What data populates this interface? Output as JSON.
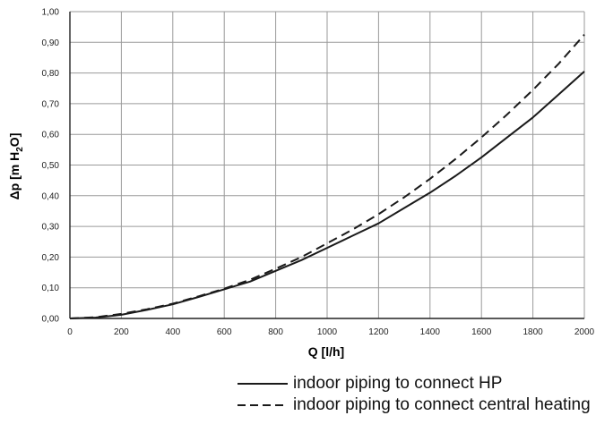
{
  "chart_data": {
    "type": "line",
    "xlabel": "Q [l/h]",
    "ylabel": "Δp [m H2O]",
    "xlim": [
      0,
      2000
    ],
    "ylim": [
      0,
      1.0
    ],
    "x_ticks": [
      "0",
      "200",
      "400",
      "600",
      "800",
      "1000",
      "1200",
      "1400",
      "1600",
      "1800",
      "2000"
    ],
    "y_ticks": [
      "0,00",
      "0,10",
      "0,20",
      "0,30",
      "0,40",
      "0,50",
      "0,60",
      "0,70",
      "0,80",
      "0,90",
      "1,00"
    ],
    "grid": true,
    "legend_position": "bottom",
    "series": [
      {
        "name": "indoor piping to connect HP",
        "style": "solid",
        "x": [
          0,
          100,
          200,
          300,
          400,
          500,
          600,
          700,
          800,
          900,
          1000,
          1100,
          1200,
          1300,
          1400,
          1500,
          1600,
          1700,
          1800,
          1900,
          2000
        ],
        "y": [
          0,
          0.003,
          0.012,
          0.028,
          0.046,
          0.07,
          0.095,
          0.12,
          0.155,
          0.19,
          0.23,
          0.27,
          0.31,
          0.36,
          0.41,
          0.465,
          0.525,
          0.59,
          0.655,
          0.73,
          0.805
        ]
      },
      {
        "name": "indoor piping to connect central heating",
        "style": "dashed",
        "x": [
          0,
          100,
          200,
          300,
          400,
          500,
          600,
          700,
          800,
          900,
          1000,
          1100,
          1200,
          1300,
          1400,
          1500,
          1600,
          1700,
          1800,
          1900,
          2000
        ],
        "y": [
          0,
          0.004,
          0.015,
          0.03,
          0.048,
          0.072,
          0.097,
          0.126,
          0.162,
          0.2,
          0.245,
          0.29,
          0.34,
          0.395,
          0.455,
          0.52,
          0.59,
          0.665,
          0.745,
          0.83,
          0.925
        ]
      }
    ]
  }
}
